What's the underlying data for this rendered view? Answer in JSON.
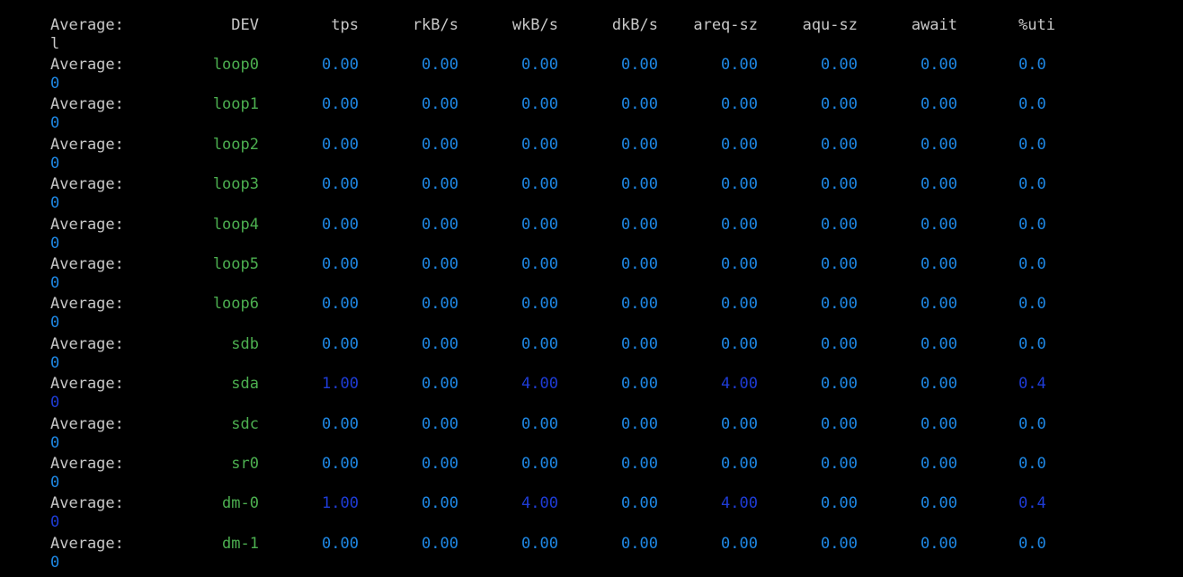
{
  "colors": {
    "background": "#000000",
    "text": "#c8c8c8",
    "device": "#4caf50",
    "value_zero": "#1e88e5",
    "value_nonzero": "#1e3cd6"
  },
  "header": {
    "label": "Average:",
    "dev": "DEV",
    "tps": "tps",
    "rkb": "rkB/s",
    "wkb": "wkB/s",
    "dkb": "dkB/s",
    "areq": "areq-sz",
    "aqu": "aqu-sz",
    "await": "await",
    "util": "%uti",
    "util_wrap": "l"
  },
  "rows": [
    {
      "label": "Average:",
      "dev": "loop0",
      "tps": "0.00",
      "rkb": "0.00",
      "wkb": "0.00",
      "dkb": "0.00",
      "areq": "0.00",
      "aqu": "0.00",
      "await": "0.00",
      "util": "0.0",
      "util_wrap": "0"
    },
    {
      "label": "Average:",
      "dev": "loop1",
      "tps": "0.00",
      "rkb": "0.00",
      "wkb": "0.00",
      "dkb": "0.00",
      "areq": "0.00",
      "aqu": "0.00",
      "await": "0.00",
      "util": "0.0",
      "util_wrap": "0"
    },
    {
      "label": "Average:",
      "dev": "loop2",
      "tps": "0.00",
      "rkb": "0.00",
      "wkb": "0.00",
      "dkb": "0.00",
      "areq": "0.00",
      "aqu": "0.00",
      "await": "0.00",
      "util": "0.0",
      "util_wrap": "0"
    },
    {
      "label": "Average:",
      "dev": "loop3",
      "tps": "0.00",
      "rkb": "0.00",
      "wkb": "0.00",
      "dkb": "0.00",
      "areq": "0.00",
      "aqu": "0.00",
      "await": "0.00",
      "util": "0.0",
      "util_wrap": "0"
    },
    {
      "label": "Average:",
      "dev": "loop4",
      "tps": "0.00",
      "rkb": "0.00",
      "wkb": "0.00",
      "dkb": "0.00",
      "areq": "0.00",
      "aqu": "0.00",
      "await": "0.00",
      "util": "0.0",
      "util_wrap": "0"
    },
    {
      "label": "Average:",
      "dev": "loop5",
      "tps": "0.00",
      "rkb": "0.00",
      "wkb": "0.00",
      "dkb": "0.00",
      "areq": "0.00",
      "aqu": "0.00",
      "await": "0.00",
      "util": "0.0",
      "util_wrap": "0"
    },
    {
      "label": "Average:",
      "dev": "loop6",
      "tps": "0.00",
      "rkb": "0.00",
      "wkb": "0.00",
      "dkb": "0.00",
      "areq": "0.00",
      "aqu": "0.00",
      "await": "0.00",
      "util": "0.0",
      "util_wrap": "0"
    },
    {
      "label": "Average:",
      "dev": "sdb",
      "tps": "0.00",
      "rkb": "0.00",
      "wkb": "0.00",
      "dkb": "0.00",
      "areq": "0.00",
      "aqu": "0.00",
      "await": "0.00",
      "util": "0.0",
      "util_wrap": "0"
    },
    {
      "label": "Average:",
      "dev": "sda",
      "tps": "1.00",
      "rkb": "0.00",
      "wkb": "4.00",
      "dkb": "0.00",
      "areq": "4.00",
      "aqu": "0.00",
      "await": "0.00",
      "util": "0.4",
      "util_wrap": "0"
    },
    {
      "label": "Average:",
      "dev": "sdc",
      "tps": "0.00",
      "rkb": "0.00",
      "wkb": "0.00",
      "dkb": "0.00",
      "areq": "0.00",
      "aqu": "0.00",
      "await": "0.00",
      "util": "0.0",
      "util_wrap": "0"
    },
    {
      "label": "Average:",
      "dev": "sr0",
      "tps": "0.00",
      "rkb": "0.00",
      "wkb": "0.00",
      "dkb": "0.00",
      "areq": "0.00",
      "aqu": "0.00",
      "await": "0.00",
      "util": "0.0",
      "util_wrap": "0"
    },
    {
      "label": "Average:",
      "dev": "dm-0",
      "tps": "1.00",
      "rkb": "0.00",
      "wkb": "4.00",
      "dkb": "0.00",
      "areq": "4.00",
      "aqu": "0.00",
      "await": "0.00",
      "util": "0.4",
      "util_wrap": "0"
    },
    {
      "label": "Average:",
      "dev": "dm-1",
      "tps": "0.00",
      "rkb": "0.00",
      "wkb": "0.00",
      "dkb": "0.00",
      "areq": "0.00",
      "aqu": "0.00",
      "await": "0.00",
      "util": "0.0",
      "util_wrap": "0"
    }
  ]
}
